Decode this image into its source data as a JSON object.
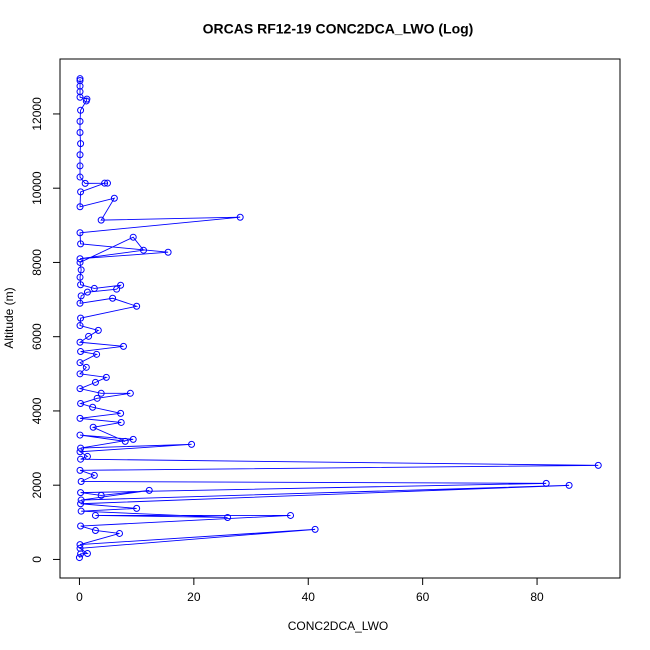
{
  "chart_data": {
    "type": "line",
    "title": "ORCAS RF12-19 CONC2DCA_LWO (Log)",
    "x_label": "CONC2DCA_LWO",
    "y_label": "Altitude (m)",
    "xlim": [
      -3.4,
      94.5
    ],
    "ylim": [
      -500,
      13480
    ],
    "xticks": [
      0,
      20,
      40,
      60,
      80
    ],
    "yticks": [
      0,
      2000,
      4000,
      6000,
      8000,
      10000,
      12000
    ],
    "x": [
      0,
      0.2,
      1.4,
      0.1,
      41.2,
      0.1,
      7.0,
      2.8,
      0.2,
      36.9,
      2.8,
      25.9,
      0.3,
      10.0,
      0.2,
      85.6,
      0.3,
      12.2,
      3.8,
      0.2,
      81.6,
      0.3,
      2.6,
      0.1,
      90.7,
      0.2,
      1.4,
      0.1,
      19.6,
      0.2,
      9.4,
      0.1,
      8.0,
      2.4,
      7.3,
      0.1,
      7.2,
      2.3,
      0.2,
      3.1,
      8.9,
      3.8,
      0.1,
      2.8,
      4.7,
      0.1,
      1.2,
      0.1,
      3.0,
      0.2,
      7.7,
      0.1,
      1.6,
      3.3,
      0.1,
      0.2,
      10.0,
      5.8,
      0.1,
      0.3,
      1.4,
      6.5,
      7.2,
      2.6,
      0.2,
      0.1,
      0.3,
      0.1,
      9.4,
      11.2,
      0.1,
      15.5,
      0.2,
      0.1,
      28.1,
      3.8,
      6.1,
      0.1,
      0.2,
      4.4,
      4.9,
      1.0,
      0.1,
      0.1,
      0.1,
      0.2,
      0.1,
      0.1,
      0.2,
      1.2,
      1.3,
      0.1,
      0.1,
      0.1,
      0.1,
      0.1
    ],
    "series": [
      {
        "color": "#0000ff",
        "values": [
          50,
          150,
          160,
          300,
          810,
          400,
          700,
          780,
          900,
          1185,
          1185,
          1130,
          1300,
          1375,
          1500,
          1995,
          1600,
          1860,
          1725,
          1800,
          2049,
          2100,
          2265,
          2400,
          2534,
          2700,
          2775,
          2900,
          3100,
          3000,
          3235,
          3350,
          3180,
          3560,
          3690,
          3800,
          3935,
          4100,
          4200,
          4340,
          4475,
          4475,
          4600,
          4770,
          4905,
          5000,
          5175,
          5300,
          5525,
          5600,
          5740,
          5850,
          6010,
          6170,
          6300,
          6500,
          6820,
          7035,
          6900,
          7100,
          7200,
          7280,
          7385,
          7300,
          7400,
          7600,
          7800,
          8000,
          8680,
          8330,
          8100,
          8275,
          8500,
          8800,
          9218,
          9140,
          9730,
          9500,
          9900,
          10135,
          10135,
          10130,
          10300,
          10600,
          10900,
          11200,
          11500,
          11800,
          12100,
          12350,
          12400,
          12450,
          12600,
          12750,
          12900,
          12950
        ]
      }
    ]
  }
}
